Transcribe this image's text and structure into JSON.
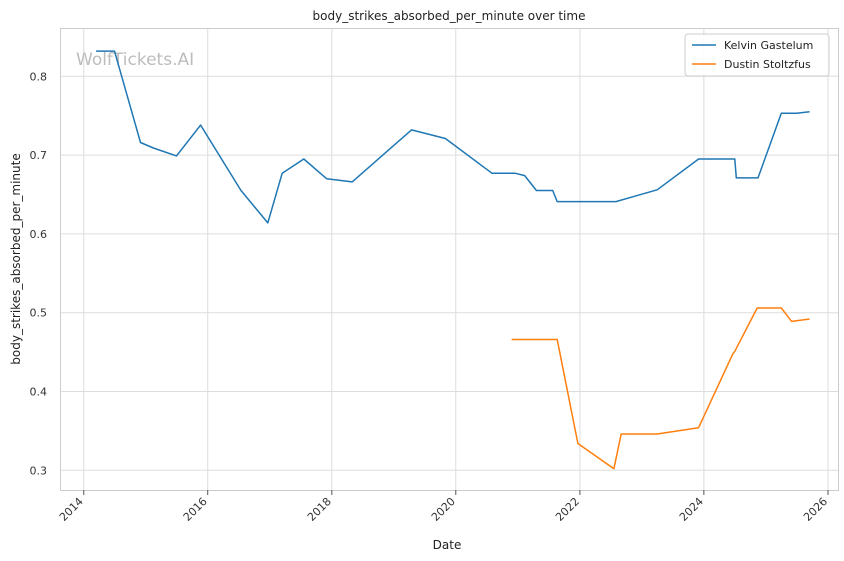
{
  "chart_data": {
    "type": "line",
    "title": "body_strikes_absorbed_per_minute over time",
    "xlabel": "Date",
    "ylabel": "body_strikes_absorbed_per_minute",
    "x_ticks": [
      "2014",
      "2016",
      "2018",
      "2020",
      "2022",
      "2024",
      "2026"
    ],
    "y_ticks": [
      "0.3",
      "0.4",
      "0.5",
      "0.6",
      "0.7",
      "0.8"
    ],
    "xlim": [
      "2013-08-20",
      "2026-03-01"
    ],
    "ylim": [
      0.275,
      0.86
    ],
    "grid": true,
    "legend_position": "top-right",
    "watermark": "WolfTickets.AI",
    "series": [
      {
        "name": "Kelvin Gastelum",
        "color": "#1f77b4",
        "points": [
          [
            "2014-03-15",
            0.832
          ],
          [
            "2014-07-01",
            0.832
          ],
          [
            "2014-12-01",
            0.716
          ],
          [
            "2015-02-15",
            0.709
          ],
          [
            "2015-07-01",
            0.699
          ],
          [
            "2015-11-20",
            0.738
          ],
          [
            "2016-07-15",
            0.655
          ],
          [
            "2016-12-20",
            0.614
          ],
          [
            "2017-03-15",
            0.677
          ],
          [
            "2017-07-20",
            0.695
          ],
          [
            "2017-12-01",
            0.67
          ],
          [
            "2018-05-01",
            0.666
          ],
          [
            "2019-04-15",
            0.732
          ],
          [
            "2019-11-01",
            0.721
          ],
          [
            "2020-08-01",
            0.677
          ],
          [
            "2020-12-15",
            0.677
          ],
          [
            "2021-02-10",
            0.674
          ],
          [
            "2021-04-20",
            0.655
          ],
          [
            "2021-07-25",
            0.655
          ],
          [
            "2021-08-20",
            0.641
          ],
          [
            "2022-08-01",
            0.641
          ],
          [
            "2023-04-01",
            0.656
          ],
          [
            "2023-12-01",
            0.695
          ],
          [
            "2024-07-01",
            0.695
          ],
          [
            "2024-07-10",
            0.671
          ],
          [
            "2024-11-15",
            0.671
          ],
          [
            "2025-04-01",
            0.753
          ],
          [
            "2025-07-01",
            0.753
          ],
          [
            "2025-09-15",
            0.755
          ]
        ]
      },
      {
        "name": "Dustin Stoltzfus",
        "color": "#ff7f0e",
        "points": [
          [
            "2020-11-25",
            0.466
          ],
          [
            "2021-08-20",
            0.466
          ],
          [
            "2021-12-20",
            0.334
          ],
          [
            "2022-07-20",
            0.302
          ],
          [
            "2022-09-01",
            0.346
          ],
          [
            "2023-04-01",
            0.346
          ],
          [
            "2023-12-01",
            0.354
          ],
          [
            "2024-06-20",
            0.448
          ],
          [
            "2024-07-01",
            0.451
          ],
          [
            "2024-11-10",
            0.506
          ],
          [
            "2025-04-01",
            0.506
          ],
          [
            "2025-06-01",
            0.489
          ],
          [
            "2025-09-15",
            0.492
          ]
        ]
      }
    ]
  }
}
